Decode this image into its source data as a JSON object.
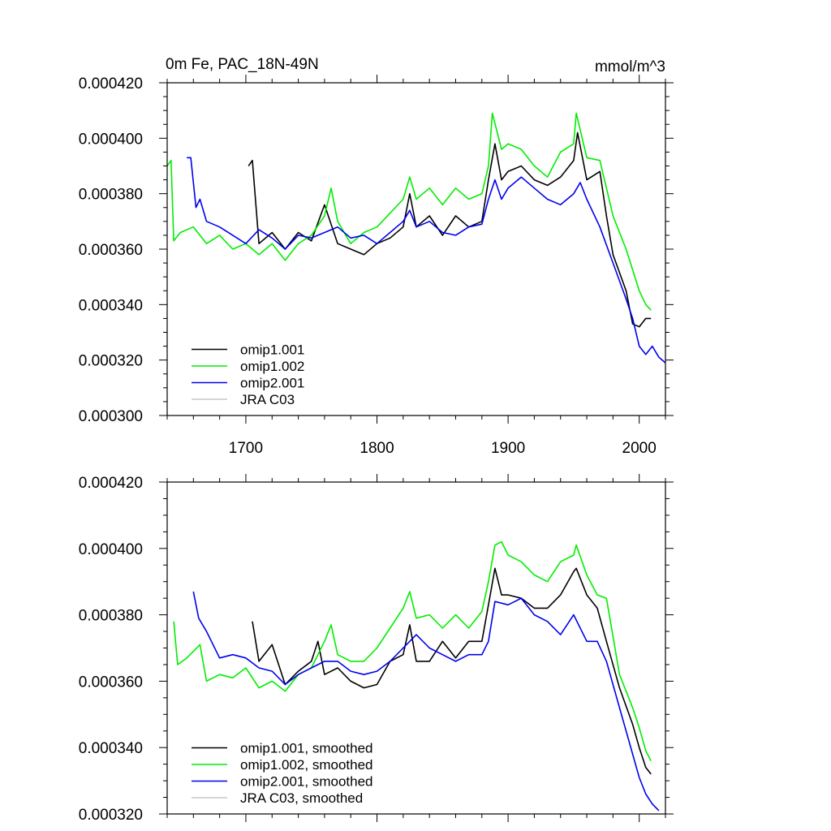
{
  "chart_data": [
    {
      "type": "line",
      "title": "0m Fe, PAC_18N-49N",
      "units": "mmol/m^3",
      "xlim": [
        1640,
        2020
      ],
      "ylim": [
        0.0003,
        0.00042
      ],
      "x_ticks": [
        1700,
        1800,
        1900,
        2000
      ],
      "x_tick_labels": [
        "1700",
        "1800",
        "1900",
        "2000"
      ],
      "y_ticks": [
        0.0003,
        0.00032,
        0.00034,
        0.00036,
        0.00038,
        0.0004,
        0.00042
      ],
      "y_tick_labels": [
        "0.000300",
        "0.000320",
        "0.000340",
        "0.000360",
        "0.000380",
        "0.000400",
        "0.000420"
      ],
      "legend_position": "bottom-left",
      "series": [
        {
          "name": "omip1.001",
          "color": "#000000",
          "x": [
            1702,
            1705,
            1710,
            1720,
            1730,
            1740,
            1750,
            1760,
            1770,
            1780,
            1790,
            1800,
            1810,
            1820,
            1825,
            1830,
            1840,
            1850,
            1860,
            1870,
            1880,
            1885,
            1890,
            1895,
            1900,
            1910,
            1920,
            1930,
            1940,
            1950,
            1953,
            1960,
            1970,
            1975,
            1980,
            1990,
            1995,
            2000,
            2005,
            2009
          ],
          "y": [
            0.00039,
            0.000392,
            0.000362,
            0.000366,
            0.00036,
            0.000366,
            0.000363,
            0.000376,
            0.000362,
            0.00036,
            0.000358,
            0.000362,
            0.000364,
            0.000368,
            0.00038,
            0.000368,
            0.000372,
            0.000365,
            0.000372,
            0.000368,
            0.00037,
            0.000385,
            0.000398,
            0.000385,
            0.000388,
            0.00039,
            0.000385,
            0.000383,
            0.000386,
            0.000392,
            0.000402,
            0.000385,
            0.000388,
            0.000372,
            0.000358,
            0.000345,
            0.000333,
            0.000332,
            0.000335,
            0.000335
          ]
        },
        {
          "name": "omip1.002",
          "color": "#00ee00",
          "x": [
            1640,
            1643,
            1645,
            1650,
            1660,
            1670,
            1680,
            1690,
            1700,
            1710,
            1720,
            1730,
            1740,
            1750,
            1760,
            1765,
            1770,
            1780,
            1790,
            1800,
            1810,
            1820,
            1825,
            1830,
            1840,
            1850,
            1860,
            1870,
            1880,
            1885,
            1888,
            1895,
            1900,
            1910,
            1920,
            1930,
            1940,
            1950,
            1952,
            1960,
            1970,
            1980,
            1990,
            2000,
            2005,
            2009
          ],
          "y": [
            0.00039,
            0.000392,
            0.000363,
            0.000366,
            0.000368,
            0.000362,
            0.000365,
            0.00036,
            0.000362,
            0.000358,
            0.000362,
            0.000356,
            0.000362,
            0.000365,
            0.000372,
            0.000382,
            0.00037,
            0.000362,
            0.000366,
            0.000368,
            0.000373,
            0.000378,
            0.000386,
            0.000378,
            0.000382,
            0.000376,
            0.000382,
            0.000378,
            0.00038,
            0.00039,
            0.000409,
            0.000396,
            0.000398,
            0.000396,
            0.00039,
            0.000386,
            0.000395,
            0.000398,
            0.000409,
            0.000393,
            0.000392,
            0.000372,
            0.00036,
            0.000345,
            0.00034,
            0.000338
          ]
        },
        {
          "name": "omip2.001",
          "color": "#0000ee",
          "x": [
            1655,
            1658,
            1662,
            1665,
            1670,
            1680,
            1690,
            1700,
            1710,
            1720,
            1730,
            1740,
            1750,
            1760,
            1770,
            1780,
            1790,
            1800,
            1810,
            1820,
            1825,
            1830,
            1840,
            1850,
            1860,
            1870,
            1880,
            1885,
            1890,
            1895,
            1900,
            1910,
            1920,
            1930,
            1940,
            1950,
            1955,
            1960,
            1970,
            1980,
            1990,
            1995,
            2000,
            2005,
            2010,
            2015,
            2020
          ],
          "y": [
            0.000393,
            0.000393,
            0.000375,
            0.000378,
            0.00037,
            0.000368,
            0.000365,
            0.000362,
            0.000367,
            0.000364,
            0.00036,
            0.000365,
            0.000364,
            0.000366,
            0.000368,
            0.000364,
            0.000365,
            0.000362,
            0.000366,
            0.00037,
            0.000374,
            0.000368,
            0.00037,
            0.000366,
            0.000365,
            0.000368,
            0.000369,
            0.000378,
            0.000385,
            0.000378,
            0.000382,
            0.000386,
            0.000382,
            0.000378,
            0.000376,
            0.00038,
            0.000384,
            0.000378,
            0.000368,
            0.000355,
            0.000342,
            0.000335,
            0.000325,
            0.000322,
            0.000325,
            0.000321,
            0.000319
          ]
        },
        {
          "name": "JRA C03",
          "color": "#c8c8c8",
          "x": [],
          "y": []
        }
      ]
    },
    {
      "type": "line",
      "title": "",
      "units": "",
      "xlim": [
        1640,
        2020
      ],
      "ylim": [
        0.00032,
        0.00042
      ],
      "x_ticks": [
        1700,
        1800,
        1900,
        2000
      ],
      "x_tick_labels": [
        "",
        "",
        "",
        ""
      ],
      "y_ticks": [
        0.00032,
        0.00034,
        0.00036,
        0.00038,
        0.0004,
        0.00042
      ],
      "y_tick_labels": [
        "0.000320",
        "0.000340",
        "0.000360",
        "0.000380",
        "0.000400",
        "0.000420"
      ],
      "legend_position": "bottom-left",
      "series": [
        {
          "name": "omip1.001, smoothed",
          "color": "#000000",
          "x": [
            1705,
            1710,
            1720,
            1730,
            1740,
            1750,
            1755,
            1760,
            1770,
            1780,
            1790,
            1800,
            1810,
            1820,
            1825,
            1830,
            1840,
            1850,
            1860,
            1870,
            1880,
            1885,
            1890,
            1895,
            1900,
            1910,
            1920,
            1930,
            1940,
            1950,
            1952,
            1960,
            1968,
            1975,
            1985,
            1995,
            2000,
            2005,
            2009
          ],
          "y": [
            0.000378,
            0.000366,
            0.000371,
            0.000359,
            0.000363,
            0.000366,
            0.000372,
            0.000362,
            0.000364,
            0.00036,
            0.000358,
            0.000359,
            0.000366,
            0.000368,
            0.000377,
            0.000366,
            0.000366,
            0.000372,
            0.000367,
            0.000372,
            0.000372,
            0.000383,
            0.000394,
            0.000386,
            0.000386,
            0.000385,
            0.000382,
            0.000382,
            0.000386,
            0.000393,
            0.000394,
            0.000386,
            0.000382,
            0.000372,
            0.000358,
            0.000347,
            0.00034,
            0.000334,
            0.000332
          ]
        },
        {
          "name": "omip1.002, smoothed",
          "color": "#00ee00",
          "x": [
            1645,
            1648,
            1655,
            1665,
            1670,
            1680,
            1690,
            1700,
            1710,
            1720,
            1730,
            1740,
            1750,
            1760,
            1765,
            1770,
            1780,
            1790,
            1800,
            1810,
            1820,
            1825,
            1830,
            1840,
            1850,
            1860,
            1870,
            1880,
            1885,
            1890,
            1895,
            1900,
            1910,
            1920,
            1930,
            1940,
            1950,
            1952,
            1960,
            1968,
            1975,
            1985,
            1995,
            2000,
            2005,
            2009
          ],
          "y": [
            0.000378,
            0.000365,
            0.000367,
            0.000371,
            0.00036,
            0.000362,
            0.000361,
            0.000364,
            0.000358,
            0.00036,
            0.000357,
            0.000362,
            0.000364,
            0.000372,
            0.000377,
            0.000368,
            0.000366,
            0.000366,
            0.00037,
            0.000376,
            0.000382,
            0.000387,
            0.000379,
            0.00038,
            0.000376,
            0.00038,
            0.000376,
            0.000381,
            0.00039,
            0.000401,
            0.000402,
            0.000398,
            0.000396,
            0.000392,
            0.00039,
            0.000396,
            0.000398,
            0.000401,
            0.000392,
            0.000386,
            0.000385,
            0.000362,
            0.000352,
            0.000346,
            0.000339,
            0.000336
          ]
        },
        {
          "name": "omip2.001, smoothed",
          "color": "#0000ee",
          "x": [
            1660,
            1664,
            1670,
            1680,
            1690,
            1700,
            1710,
            1720,
            1730,
            1740,
            1750,
            1760,
            1770,
            1780,
            1790,
            1800,
            1810,
            1820,
            1830,
            1840,
            1850,
            1860,
            1870,
            1880,
            1885,
            1890,
            1900,
            1910,
            1920,
            1930,
            1940,
            1950,
            1960,
            1968,
            1975,
            1985,
            1995,
            2000,
            2005,
            2010,
            2015
          ],
          "y": [
            0.000387,
            0.000379,
            0.000375,
            0.000367,
            0.000368,
            0.000367,
            0.000364,
            0.000363,
            0.000359,
            0.000362,
            0.000364,
            0.000366,
            0.000366,
            0.000363,
            0.000362,
            0.000363,
            0.000366,
            0.00037,
            0.000374,
            0.00037,
            0.000368,
            0.000366,
            0.000368,
            0.000368,
            0.000372,
            0.000384,
            0.000383,
            0.000385,
            0.00038,
            0.000378,
            0.000374,
            0.00038,
            0.000372,
            0.000372,
            0.000366,
            0.000352,
            0.000338,
            0.000331,
            0.000326,
            0.000323,
            0.000321
          ]
        },
        {
          "name": "JRA C03, smoothed",
          "color": "#c8c8c8",
          "x": [],
          "y": []
        }
      ]
    }
  ]
}
